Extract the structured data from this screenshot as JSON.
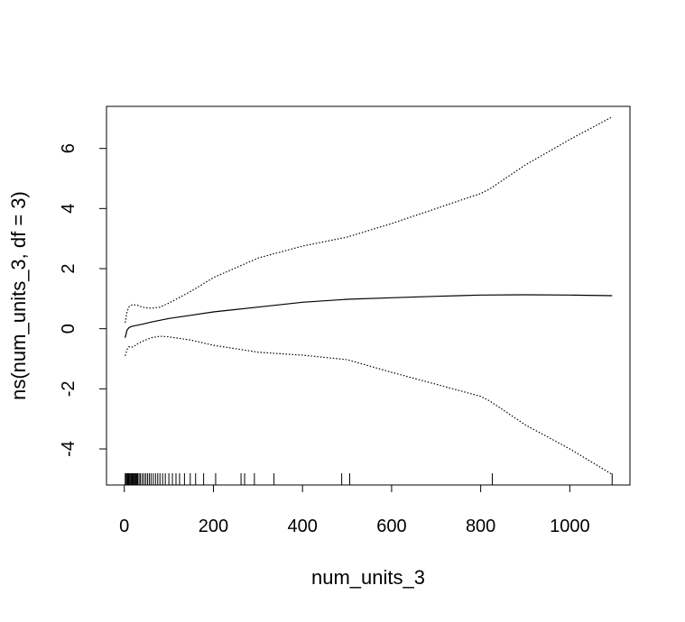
{
  "chart_data": {
    "type": "line",
    "title": "",
    "xlabel": "num_units_3",
    "ylabel": "ns(num_units_3, df = 3)",
    "xlim": [
      -40,
      1135
    ],
    "ylim": [
      -5.2,
      7.4
    ],
    "x_ticks": [
      0,
      200,
      400,
      600,
      800,
      1000
    ],
    "x_tick_labels": [
      "0",
      "200",
      "400",
      "600",
      "800",
      "1000"
    ],
    "y_ticks": [
      -4,
      -2,
      0,
      2,
      4,
      6
    ],
    "y_tick_labels": [
      "-4",
      "-2",
      "0",
      "2",
      "4",
      "6"
    ],
    "grid": false,
    "legend": "none",
    "series": [
      {
        "style": "solid",
        "color": "#000000",
        "x": [
          2,
          6,
          10,
          15,
          20,
          30,
          40,
          60,
          80,
          100,
          150,
          200,
          300,
          400,
          500,
          600,
          700,
          800,
          900,
          1000,
          1095
        ],
        "y": [
          -0.3,
          -0.05,
          0.03,
          0.07,
          0.09,
          0.12,
          0.15,
          0.22,
          0.28,
          0.34,
          0.45,
          0.56,
          0.72,
          0.88,
          0.98,
          1.03,
          1.08,
          1.12,
          1.13,
          1.12,
          1.1
        ]
      },
      {
        "style": "dotted",
        "color": "#000000",
        "x": [
          2,
          6,
          10,
          15,
          20,
          30,
          40,
          60,
          80,
          100,
          150,
          200,
          300,
          400,
          500,
          600,
          700,
          800,
          820,
          900,
          1000,
          1095
        ],
        "y": [
          0.2,
          0.55,
          0.72,
          0.78,
          0.8,
          0.78,
          0.72,
          0.68,
          0.72,
          0.85,
          1.25,
          1.7,
          2.35,
          2.75,
          3.05,
          3.5,
          4.0,
          4.5,
          4.65,
          5.45,
          6.3,
          7.05
        ]
      },
      {
        "style": "dotted",
        "color": "#000000",
        "x": [
          2,
          6,
          10,
          15,
          20,
          30,
          40,
          60,
          80,
          100,
          150,
          200,
          300,
          400,
          500,
          600,
          700,
          800,
          820,
          900,
          1000,
          1095
        ],
        "y": [
          -0.9,
          -0.7,
          -0.6,
          -0.62,
          -0.6,
          -0.5,
          -0.42,
          -0.3,
          -0.25,
          -0.27,
          -0.38,
          -0.55,
          -0.78,
          -0.88,
          -1.03,
          -1.45,
          -1.85,
          -2.25,
          -2.4,
          -3.2,
          -4.0,
          -4.85
        ]
      }
    ],
    "rug": [
      2,
      4,
      5,
      7,
      8,
      9,
      10,
      12,
      13,
      15,
      17,
      18,
      20,
      22,
      24,
      26,
      28,
      30,
      33,
      36,
      40,
      44,
      48,
      52,
      56,
      60,
      65,
      70,
      75,
      80,
      86,
      92,
      100,
      108,
      116,
      124,
      135,
      148,
      160,
      178,
      205,
      262,
      270,
      292,
      336,
      488,
      506,
      826,
      1095
    ]
  }
}
